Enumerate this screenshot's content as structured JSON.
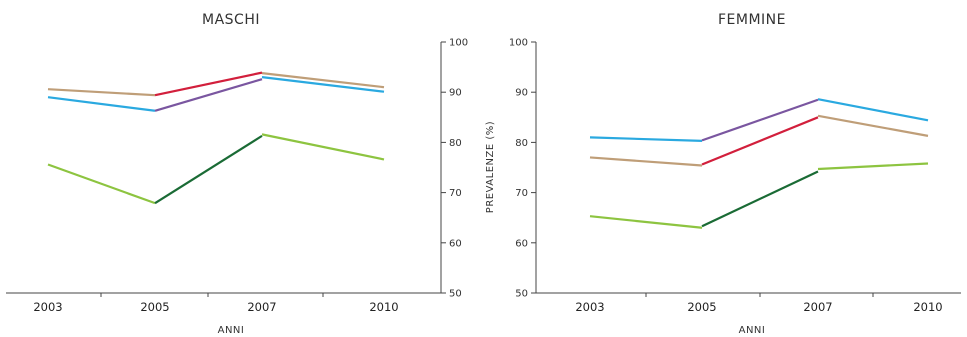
{
  "chart_data": [
    {
      "type": "line",
      "title": "MASCHI",
      "xlabel": "ANNI",
      "ylabel": "",
      "categories": [
        "2003",
        "2005",
        "2007",
        "2010"
      ],
      "ylim": [
        50,
        100
      ],
      "yticks": [
        "50",
        "60",
        "70",
        "80",
        "90",
        "100"
      ],
      "y_axis_side": "right",
      "grid": false,
      "segments": [
        {
          "color": "#bf9e78",
          "from": [
            "2003",
            90.6
          ],
          "to": [
            "2005",
            89.4
          ]
        },
        {
          "color": "#bf9e78",
          "from": [
            "2007",
            93.8
          ],
          "to": [
            "2010",
            91.0
          ]
        },
        {
          "color": "#2aa9e0",
          "from": [
            "2003",
            89.0
          ],
          "to": [
            "2005",
            86.3
          ]
        },
        {
          "color": "#2aa9e0",
          "from": [
            "2007",
            93.0
          ],
          "to": [
            "2010",
            90.1
          ]
        },
        {
          "color": "#d21f3c",
          "from": [
            "2005",
            89.4
          ],
          "to": [
            "2007",
            93.9
          ]
        },
        {
          "color": "#7a56a0",
          "from": [
            "2005",
            86.3
          ],
          "to": [
            "2007",
            92.6
          ]
        },
        {
          "color": "#8dc440",
          "from": [
            "2003",
            75.6
          ],
          "to": [
            "2005",
            67.9
          ]
        },
        {
          "color": "#8dc440",
          "from": [
            "2007",
            81.6
          ],
          "to": [
            "2010",
            76.6
          ]
        },
        {
          "color": "#1a6b35",
          "from": [
            "2005",
            67.9
          ],
          "to": [
            "2007",
            81.3
          ]
        }
      ]
    },
    {
      "type": "line",
      "title": "FEMMINE",
      "xlabel": "ANNI",
      "ylabel": "PREVALENZE (%)",
      "categories": [
        "2003",
        "2005",
        "2007",
        "2010"
      ],
      "ylim": [
        50,
        100
      ],
      "yticks": [
        "50",
        "60",
        "70",
        "80",
        "90",
        "100"
      ],
      "y_axis_side": "left",
      "grid": false,
      "segments": [
        {
          "color": "#2aa9e0",
          "from": [
            "2003",
            81.0
          ],
          "to": [
            "2005",
            80.3
          ]
        },
        {
          "color": "#2aa9e0",
          "from": [
            "2007",
            88.6
          ],
          "to": [
            "2010",
            84.4
          ]
        },
        {
          "color": "#7a56a0",
          "from": [
            "2005",
            80.4
          ],
          "to": [
            "2007",
            88.5
          ]
        },
        {
          "color": "#bf9e78",
          "from": [
            "2003",
            77.0
          ],
          "to": [
            "2005",
            75.4
          ]
        },
        {
          "color": "#bf9e78",
          "from": [
            "2007",
            85.3
          ],
          "to": [
            "2010",
            81.3
          ]
        },
        {
          "color": "#d21f3c",
          "from": [
            "2005",
            75.6
          ],
          "to": [
            "2007",
            85.0
          ]
        },
        {
          "color": "#8dc440",
          "from": [
            "2003",
            65.3
          ],
          "to": [
            "2005",
            63.0
          ]
        },
        {
          "color": "#8dc440",
          "from": [
            "2007",
            74.7
          ],
          "to": [
            "2010",
            75.8
          ]
        },
        {
          "color": "#1a6b35",
          "from": [
            "2005",
            63.3
          ],
          "to": [
            "2007",
            74.2
          ]
        }
      ]
    }
  ]
}
